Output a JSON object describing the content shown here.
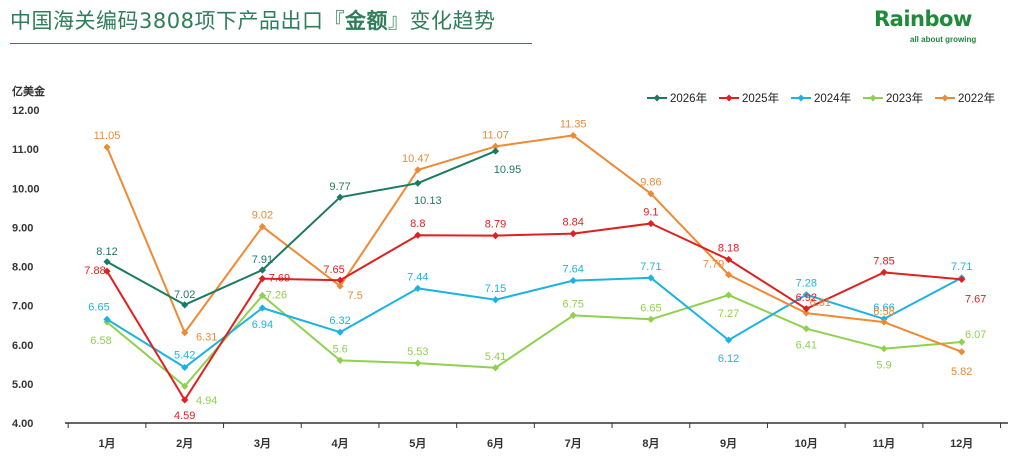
{
  "header": {
    "title_prefix": "中国海关编码3808项下产品出口『",
    "title_bold": "金额",
    "title_suffix": "』变化趋势"
  },
  "logo": {
    "word": "Rainbow",
    "tagline": "all about growing"
  },
  "chart_data": {
    "type": "line",
    "ylabel": "亿美金",
    "ylim": [
      4.0,
      12.0
    ],
    "yticks": [
      "4.00",
      "5.00",
      "6.00",
      "7.00",
      "8.00",
      "9.00",
      "10.00",
      "11.00",
      "12.00"
    ],
    "categories": [
      "1月",
      "2月",
      "3月",
      "4月",
      "5月",
      "6月",
      "7月",
      "8月",
      "9月",
      "10月",
      "11月",
      "12月"
    ],
    "legend_position": "top-right",
    "series": [
      {
        "name": "2026年",
        "color": "#1b7a62",
        "values": [
          8.12,
          7.02,
          7.91,
          9.77,
          10.13,
          10.95,
          null,
          null,
          null,
          null,
          null,
          null
        ],
        "labels": [
          "8.12",
          "7.02",
          "7.91",
          "9.77",
          "10.13",
          "10.95",
          null,
          null,
          null,
          null,
          null,
          null
        ]
      },
      {
        "name": "2025年",
        "color": "#e0201f",
        "values": [
          7.88,
          4.59,
          7.69,
          7.65,
          8.8,
          8.79,
          8.84,
          9.1,
          8.18,
          6.92,
          7.85,
          7.67
        ],
        "labels": [
          "7.88",
          "4.59",
          "7.69",
          "7.65",
          "8.8",
          "8.79",
          "8.84",
          "9.1",
          "8.18",
          "6.92",
          "7.85",
          "7.67"
        ]
      },
      {
        "name": "2024年",
        "color": "#1cb3e3",
        "values": [
          6.65,
          5.42,
          6.94,
          6.32,
          7.44,
          7.15,
          7.64,
          7.71,
          6.12,
          7.28,
          6.66,
          7.71
        ],
        "labels": [
          "6.65",
          "5.42",
          "6.94",
          "6.32",
          "7.44",
          "7.15",
          "7.64",
          "7.71",
          "6.12",
          "7.28",
          "6.66",
          "7.71"
        ]
      },
      {
        "name": "2023年",
        "color": "#8fd14f",
        "values": [
          6.58,
          4.94,
          7.26,
          5.6,
          5.53,
          5.41,
          6.75,
          6.65,
          7.27,
          6.41,
          5.9,
          6.07
        ],
        "labels": [
          "6.58",
          "4.94",
          "7.26",
          "5.6",
          "5.53",
          "5.41",
          "6.75",
          "6.65",
          "7.27",
          "6.41",
          "5.9",
          "6.07"
        ]
      },
      {
        "name": "2022年",
        "color": "#ee8a35",
        "values": [
          11.05,
          6.31,
          9.02,
          7.5,
          10.47,
          11.07,
          11.35,
          9.86,
          7.79,
          6.81,
          6.58,
          5.82
        ],
        "labels": [
          "11.05",
          "6.31",
          "9.02",
          "7.5",
          "10.47",
          "11.07",
          "11.35",
          "9.86",
          "7.79",
          "6.81",
          "6.58",
          "5.82"
        ]
      }
    ]
  }
}
